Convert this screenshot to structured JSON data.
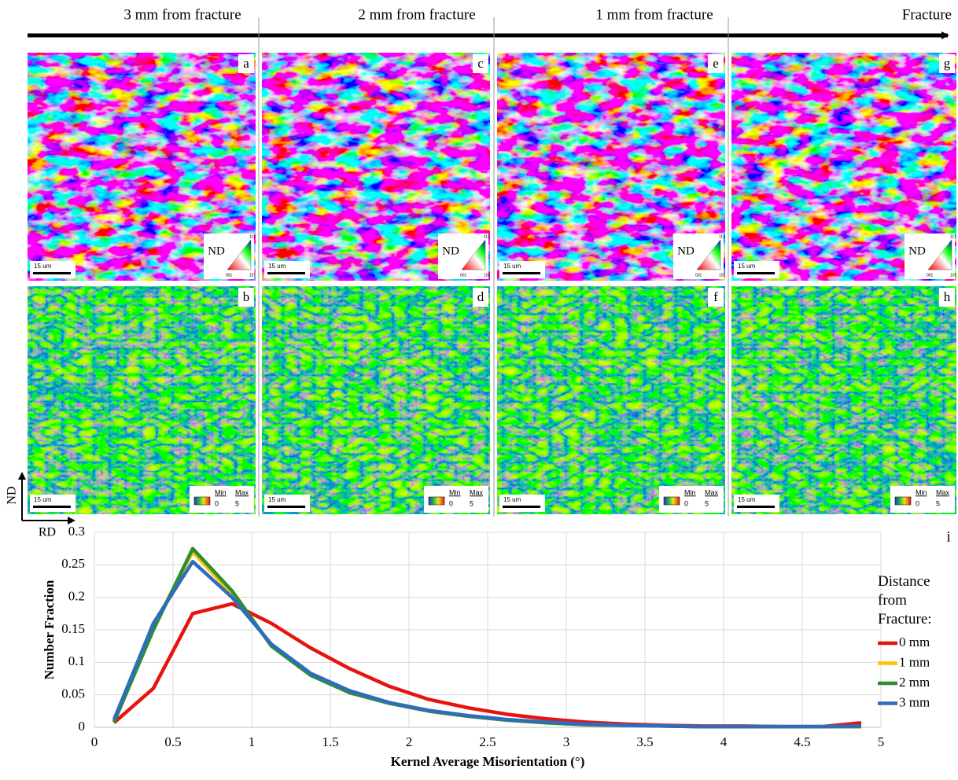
{
  "header": {
    "labels": [
      "3 mm from fracture",
      "2 mm from fracture",
      "1 mm from fracture",
      "Fracture"
    ]
  },
  "panels": {
    "top": [
      {
        "letter": "a",
        "scale_bar": "15 um",
        "legend": "ND",
        "ipf": [
          "001",
          "101",
          "111"
        ]
      },
      {
        "letter": "c",
        "scale_bar": "15 um",
        "legend": "ND",
        "ipf": [
          "001",
          "101",
          "111"
        ]
      },
      {
        "letter": "e",
        "scale_bar": "15 um",
        "legend": "ND",
        "ipf": [
          "001",
          "101",
          "111"
        ]
      },
      {
        "letter": "g",
        "scale_bar": "15 um",
        "legend": "ND",
        "ipf": [
          "001",
          "101",
          "111"
        ]
      }
    ],
    "bottom": [
      {
        "letter": "b",
        "scale_bar": "15 um",
        "min_label": "Min",
        "min_value": 0,
        "max_label": "Max",
        "max_value": 5
      },
      {
        "letter": "d",
        "scale_bar": "15 um",
        "min_label": "Min",
        "min_value": 0,
        "max_label": "Max",
        "max_value": 5
      },
      {
        "letter": "f",
        "scale_bar": "15 um",
        "min_label": "Min",
        "min_value": 0,
        "max_label": "Max",
        "max_value": 5
      },
      {
        "letter": "h",
        "scale_bar": "15 um",
        "min_label": "Min",
        "min_value": 0,
        "max_label": "Max",
        "max_value": 5
      }
    ]
  },
  "axes_indicator": {
    "vertical": "ND",
    "horizontal": "RD"
  },
  "chart_data": {
    "type": "line",
    "panel_letter": "i",
    "x_label": "Kernel Average Misorientation (°)",
    "y_label": "Number Fraction",
    "legend_title": "Distance from Fracture:",
    "x": [
      0.125,
      0.375,
      0.625,
      0.875,
      1.125,
      1.375,
      1.625,
      1.875,
      2.125,
      2.375,
      2.625,
      2.875,
      3.125,
      3.375,
      3.625,
      3.875,
      4.125,
      4.375,
      4.625,
      4.875
    ],
    "series": [
      {
        "name": "0 mm",
        "color": "#e8130f",
        "values": [
          0.007,
          0.06,
          0.175,
          0.19,
          0.16,
          0.122,
          0.09,
          0.063,
          0.043,
          0.03,
          0.02,
          0.013,
          0.008,
          0.005,
          0.003,
          0.002,
          0.002,
          0.001,
          0.001,
          0.007
        ]
      },
      {
        "name": "1 mm",
        "color": "#ffc000",
        "values": [
          0.009,
          0.155,
          0.27,
          0.205,
          0.127,
          0.082,
          0.055,
          0.037,
          0.025,
          0.017,
          0.011,
          0.007,
          0.004,
          0.003,
          0.002,
          0.001,
          0.001,
          0.001,
          0.001,
          0.001
        ]
      },
      {
        "name": "2 mm",
        "color": "#2f8f2f",
        "values": [
          0.008,
          0.15,
          0.275,
          0.21,
          0.125,
          0.08,
          0.053,
          0.037,
          0.025,
          0.017,
          0.011,
          0.007,
          0.004,
          0.003,
          0.002,
          0.001,
          0.001,
          0.001,
          0.001,
          0.001
        ]
      },
      {
        "name": "3 mm",
        "color": "#2e6cbd",
        "values": [
          0.012,
          0.16,
          0.255,
          0.2,
          0.128,
          0.083,
          0.056,
          0.038,
          0.026,
          0.018,
          0.012,
          0.008,
          0.005,
          0.003,
          0.002,
          0.001,
          0.001,
          0.001,
          0.001,
          0.002
        ]
      }
    ],
    "xlim": [
      0,
      5
    ],
    "xticks": [
      0,
      0.5,
      1,
      1.5,
      2,
      2.5,
      3,
      3.5,
      4,
      4.5,
      5
    ],
    "ylim": [
      0,
      0.3
    ],
    "yticks": [
      0,
      0.05,
      0.1,
      0.15,
      0.2,
      0.25,
      0.3
    ],
    "grid": true
  }
}
